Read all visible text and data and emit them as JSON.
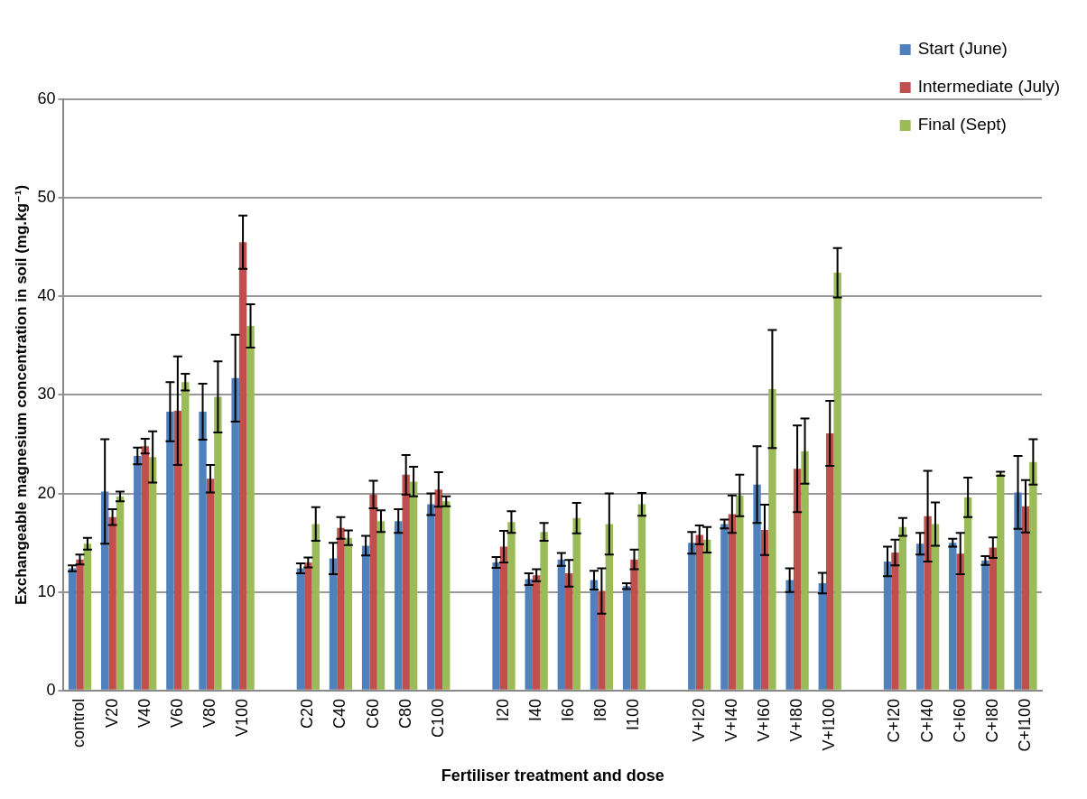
{
  "chart_data": {
    "type": "bar",
    "xlabel": "Fertiliser treatment and dose",
    "ylabel": "Exchangeable magnesium concentration in soil (mg.kg⁻¹)",
    "categories": [
      "control",
      "V20",
      "V40",
      "V60",
      "V80",
      "V100",
      null,
      "C20",
      "C40",
      "C60",
      "C80",
      "C100",
      null,
      "I20",
      "I40",
      "I60",
      "I80",
      "I100",
      null,
      "V+I20",
      "V+I40",
      "V+I60",
      "V+I80",
      "V+I100",
      null,
      "C+I20",
      "C+I40",
      "C+I60",
      "C+I80",
      "C+I100"
    ],
    "series": [
      {
        "name": "Start (June)",
        "color": "#4f81bd",
        "values": [
          12.4,
          20.2,
          23.8,
          28.3,
          28.3,
          31.7,
          null,
          12.4,
          13.4,
          14.7,
          17.2,
          18.9,
          null,
          13.0,
          11.3,
          13.3,
          11.2,
          10.6,
          null,
          15.0,
          16.9,
          20.9,
          11.2,
          10.9,
          null,
          13.1,
          14.9,
          15.0,
          13.2,
          20.1
        ],
        "errors": [
          0.3,
          5.3,
          0.85,
          3.0,
          2.85,
          4.4,
          null,
          0.5,
          1.6,
          1.0,
          1.2,
          1.1,
          null,
          0.55,
          0.6,
          0.65,
          0.95,
          0.3,
          null,
          1.1,
          0.45,
          3.9,
          1.2,
          1.05,
          null,
          1.5,
          1.1,
          0.4,
          0.45,
          3.7
        ]
      },
      {
        "name": "Intermediate (July)",
        "color": "#c0504d",
        "values": [
          13.3,
          17.6,
          24.8,
          28.4,
          21.5,
          45.5,
          null,
          13.0,
          16.5,
          19.9,
          21.9,
          20.4,
          null,
          14.6,
          11.7,
          11.9,
          10.1,
          13.3,
          null,
          15.8,
          17.9,
          16.3,
          22.5,
          26.1,
          null,
          14.0,
          17.7,
          13.9,
          14.5,
          18.7
        ],
        "errors": [
          0.5,
          0.8,
          0.75,
          5.5,
          1.4,
          2.7,
          null,
          0.5,
          1.1,
          1.4,
          2.0,
          1.75,
          null,
          1.6,
          0.6,
          1.35,
          2.3,
          1.0,
          null,
          0.95,
          1.9,
          2.55,
          4.4,
          3.3,
          null,
          1.3,
          4.6,
          2.1,
          1.05,
          2.65
        ]
      },
      {
        "name": "Final (Sept)",
        "color": "#9bbb59",
        "values": [
          14.9,
          19.7,
          23.7,
          31.3,
          29.8,
          37.0,
          null,
          16.9,
          15.5,
          17.2,
          21.2,
          19.2,
          null,
          17.1,
          16.1,
          17.5,
          16.9,
          18.9,
          null,
          15.3,
          19.8,
          30.6,
          24.3,
          42.4,
          null,
          16.6,
          16.9,
          19.6,
          22.0,
          23.2
        ],
        "errors": [
          0.6,
          0.5,
          2.6,
          0.85,
          3.6,
          2.2,
          null,
          1.7,
          0.75,
          1.1,
          1.5,
          0.5,
          null,
          1.1,
          0.9,
          1.55,
          3.1,
          1.15,
          null,
          1.3,
          2.1,
          6.0,
          3.3,
          2.5,
          null,
          0.9,
          2.2,
          2.0,
          0.2,
          2.3
        ]
      }
    ],
    "ylim": [
      0,
      60
    ],
    "yticks": [
      0,
      10,
      20,
      30,
      40,
      50,
      60
    ],
    "grid": "y",
    "legend": "top right"
  }
}
